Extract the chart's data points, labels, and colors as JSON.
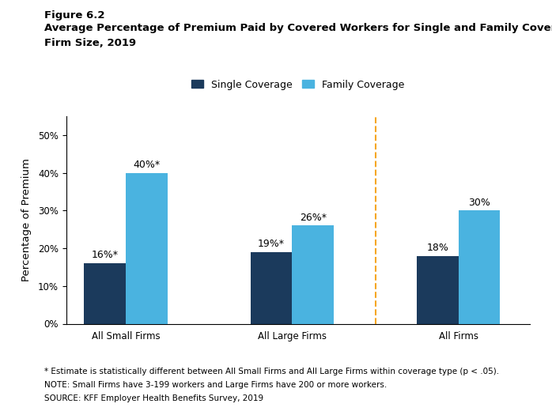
{
  "figure_label": "Figure 6.2",
  "title_line1": "Average Percentage of Premium Paid by Covered Workers for Single and Family Coverage, by",
  "title_line2": "Firm Size, 2019",
  "categories": [
    "All Small Firms",
    "All Large Firms",
    "All Firms"
  ],
  "single_values": [
    16,
    19,
    18
  ],
  "family_values": [
    40,
    26,
    30
  ],
  "single_labels": [
    "16%*",
    "19%*",
    "18%"
  ],
  "family_labels": [
    "40%*",
    "26%*",
    "30%"
  ],
  "single_color": "#1b3a5c",
  "family_color": "#4ab3e0",
  "dashed_line_color": "#f5a623",
  "ylabel": "Percentage of Premium",
  "ylim": [
    0,
    55
  ],
  "yticks": [
    0,
    10,
    20,
    30,
    40,
    50
  ],
  "legend_labels": [
    "Single Coverage",
    "Family Coverage"
  ],
  "bar_width": 0.35,
  "footnote1": "* Estimate is statistically different between All Small Firms and All Large Firms within coverage type (p < .05).",
  "footnote2": "NOTE: Small Firms have 3-199 workers and Large Firms have 200 or more workers.",
  "footnote3": "SOURCE: KFF Employer Health Benefits Survey, 2019",
  "background_color": "#ffffff",
  "label_fontsize": 9,
  "tick_fontsize": 8.5,
  "group_positions": [
    0.5,
    1.9,
    3.3
  ]
}
